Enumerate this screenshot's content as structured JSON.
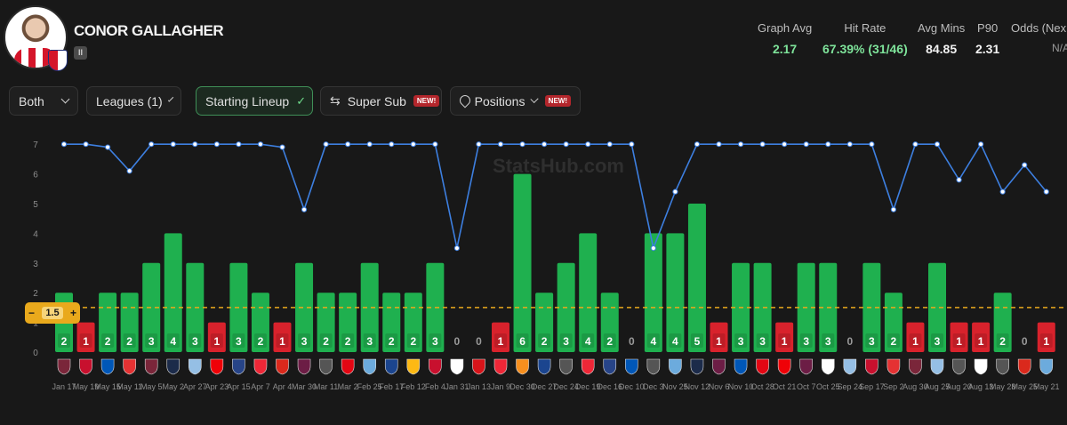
{
  "player": {
    "name": "CONOR GALLAGHER",
    "tag": "II"
  },
  "stats": [
    {
      "label": "Graph Avg",
      "value": "2.17",
      "tone": "green"
    },
    {
      "label": "Hit Rate",
      "value": "67.39% (31/46)",
      "tone": "green"
    },
    {
      "label": "Avg Mins",
      "value": "84.85",
      "tone": "white"
    },
    {
      "label": "P90",
      "value": "2.31",
      "tone": "white"
    },
    {
      "label": "Odds (Nex",
      "value": "N/A",
      "tone": "grey"
    }
  ],
  "filters": {
    "both": "Both",
    "leagues": "Leagues (1)",
    "starting_lineup": "Starting Lineup",
    "super_sub": "Super Sub",
    "positions": "Positions",
    "new_badge": "NEW!"
  },
  "line_control": {
    "minus": "−",
    "value": "1.5",
    "plus": "+"
  },
  "watermark": "StatsHub.com",
  "colors": {
    "hit": "#1fb04f",
    "miss": "#d8222c",
    "line": "#3d7fe0",
    "threshold": "#e9a91c"
  },
  "chart_data": {
    "type": "bar",
    "ylim": [
      0,
      7
    ],
    "yticks": [
      0,
      1,
      2,
      3,
      4,
      5,
      6,
      7
    ],
    "threshold": 1.5,
    "categories": [
      "Jan 17",
      "May 19",
      "May 15",
      "May 11",
      "May 5",
      "May 2",
      "Apr 27",
      "Apr 23",
      "Apr 15",
      "Apr 7",
      "Apr 4",
      "Mar 30",
      "Mar 11",
      "Mar 2",
      "Feb 25",
      "Feb 17",
      "Feb 12",
      "Feb 4",
      "Jan 31",
      "Jan 13",
      "Jan 9",
      "Dec 30",
      "Dec 27",
      "Dec 24",
      "Dec 19",
      "Dec 16",
      "Dec 10",
      "Dec 3",
      "Nov 25",
      "Nov 12",
      "Nov 6",
      "Nov 10",
      "Oct 28",
      "Oct 21",
      "Oct 7",
      "Oct 25",
      "Sep 24",
      "Sep 17",
      "Sep 2",
      "Aug 30",
      "Aug 25",
      "Aug 20",
      "Aug 13",
      "May 28",
      "May 25",
      "May 21"
    ],
    "series": [
      {
        "type": "bar",
        "values": [
          2,
          1,
          2,
          2,
          3,
          4,
          3,
          1,
          3,
          2,
          1,
          3,
          2,
          2,
          3,
          2,
          2,
          3,
          0,
          0,
          1,
          6,
          2,
          3,
          4,
          2,
          0,
          4,
          4,
          5,
          1,
          3,
          3,
          1,
          3,
          3,
          0,
          3,
          2,
          1,
          3,
          1,
          1,
          2,
          0,
          1
        ]
      },
      {
        "type": "line",
        "values": [
          7,
          7,
          6.9,
          6.1,
          7,
          7,
          7,
          7,
          7,
          7,
          6.9,
          4.8,
          7,
          7,
          7,
          7,
          7,
          7,
          3.5,
          7,
          7,
          7,
          7,
          7,
          7,
          7,
          7,
          3.5,
          5.4,
          7,
          7,
          7,
          7,
          7,
          7,
          7,
          7,
          7,
          4.8,
          7,
          7,
          5.8,
          7,
          5.4,
          6.3,
          5.4
        ]
      }
    ],
    "opponents": [
      "whu",
      "bou",
      "bha",
      "nfo",
      "whu",
      "tot",
      "avl",
      "ars",
      "eve",
      "shu",
      "mun",
      "bur",
      "new",
      "bre",
      "mci",
      "cry",
      "wol",
      "liv",
      "ful",
      "mid",
      "shu",
      "lut",
      "cry",
      "new",
      "shu",
      "eve",
      "bha",
      "new",
      "mci",
      "tot",
      "bur",
      "bha",
      "bre",
      "ars",
      "bur",
      "ful",
      "avl",
      "bou",
      "nfo",
      "whu",
      "avl",
      "new",
      "ful",
      "new",
      "mun",
      "mci"
    ]
  }
}
